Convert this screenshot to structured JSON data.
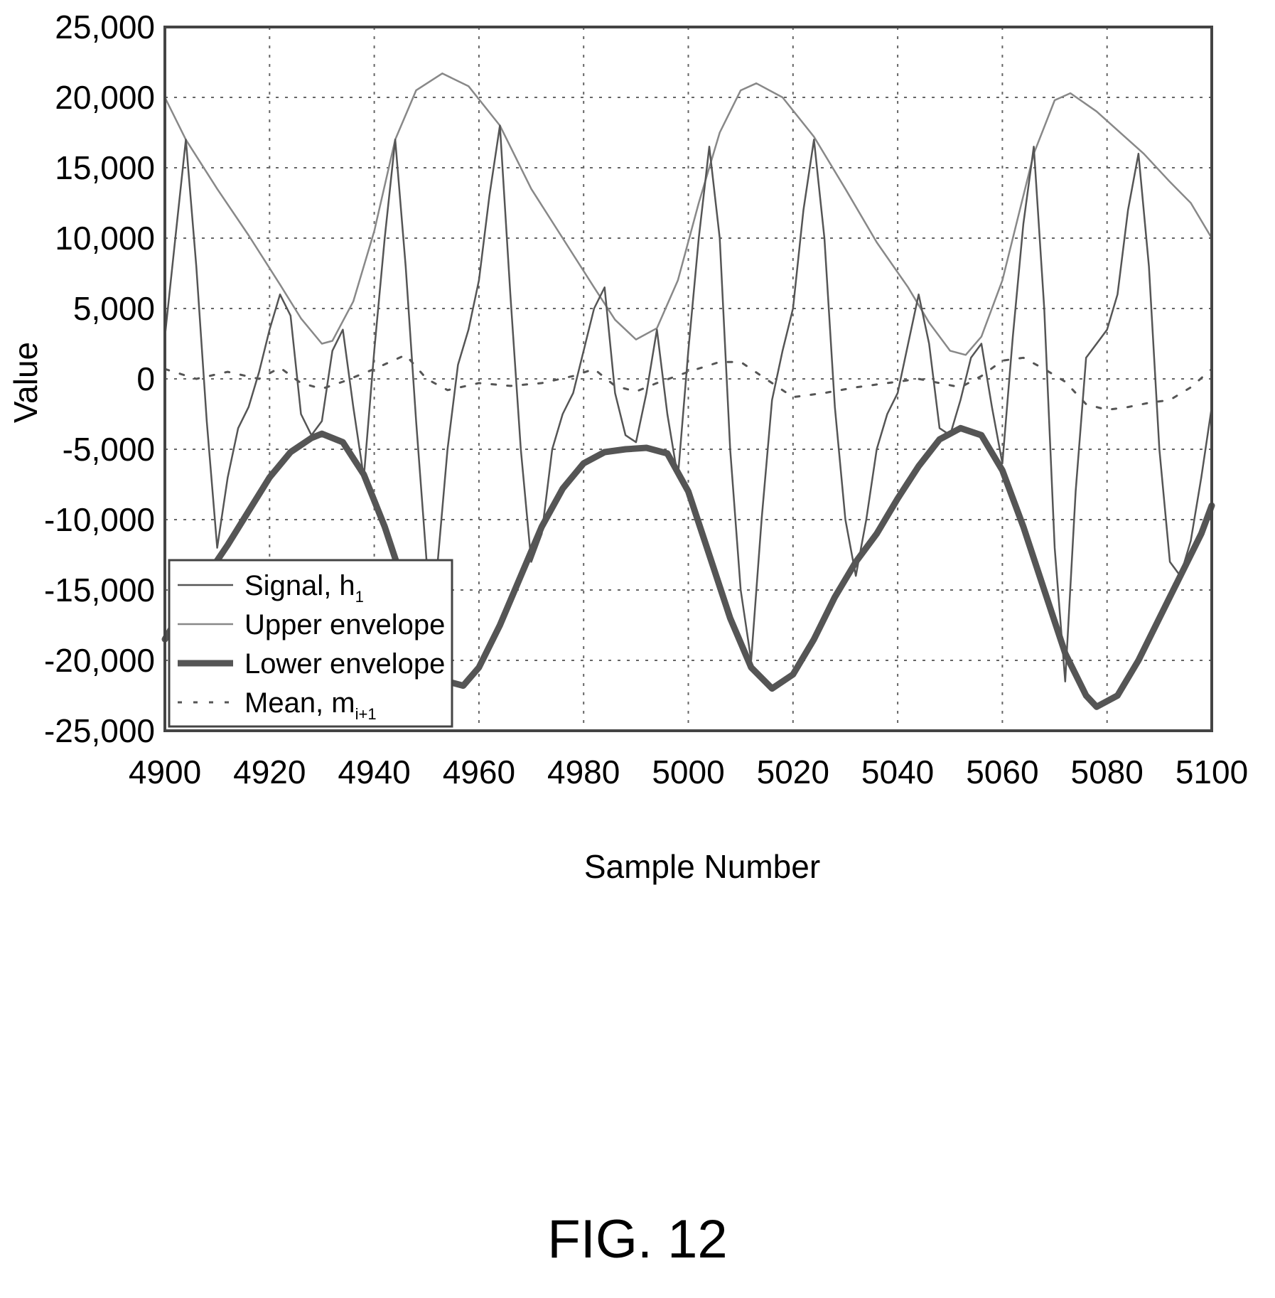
{
  "figure": {
    "caption": "FIG. 12"
  },
  "chart_data": {
    "type": "line",
    "xlabel": "Sample Number",
    "ylabel": "Value",
    "xlim": [
      4900,
      5100
    ],
    "ylim": [
      -25000,
      25000
    ],
    "x_ticks": [
      4900,
      4920,
      4940,
      4960,
      4980,
      5000,
      5020,
      5040,
      5060,
      5080,
      5100
    ],
    "x_tick_labels": [
      "4900",
      "4920",
      "4940",
      "4960",
      "4980",
      "5000",
      "5020",
      "5040",
      "5060",
      "5080",
      "5100"
    ],
    "y_ticks": [
      25000,
      20000,
      15000,
      10000,
      5000,
      0,
      -5000,
      -10000,
      -15000,
      -20000,
      -25000
    ],
    "y_tick_labels": [
      "25,000",
      "20,000",
      "15,000",
      "10,000",
      "5,000",
      "0",
      "-5,000",
      "-10,000",
      "-15,000",
      "-20,000",
      "-25,000"
    ],
    "grid": true,
    "legend_position": "bottom-left",
    "series": [
      {
        "name": "Signal, h",
        "name_subscript": "1",
        "style": "thin-solid",
        "color": "#555555",
        "points": [
          [
            4900,
            3000
          ],
          [
            4902,
            10000
          ],
          [
            4904,
            17000
          ],
          [
            4906,
            8000
          ],
          [
            4908,
            -3000
          ],
          [
            4910,
            -12000
          ],
          [
            4912,
            -7000
          ],
          [
            4914,
            -3500
          ],
          [
            4916,
            -2000
          ],
          [
            4918,
            500
          ],
          [
            4920,
            3500
          ],
          [
            4922,
            6000
          ],
          [
            4924,
            4500
          ],
          [
            4926,
            -2500
          ],
          [
            4928,
            -4000
          ],
          [
            4930,
            -3000
          ],
          [
            4932,
            2000
          ],
          [
            4934,
            3500
          ],
          [
            4936,
            -2000
          ],
          [
            4938,
            -7000
          ],
          [
            4940,
            2000
          ],
          [
            4942,
            10000
          ],
          [
            4944,
            17000
          ],
          [
            4946,
            8000
          ],
          [
            4948,
            -3000
          ],
          [
            4950,
            -13000
          ],
          [
            4952,
            -13500
          ],
          [
            4954,
            -5000
          ],
          [
            4956,
            1000
          ],
          [
            4958,
            3500
          ],
          [
            4960,
            7000
          ],
          [
            4962,
            13000
          ],
          [
            4964,
            18000
          ],
          [
            4966,
            6000
          ],
          [
            4968,
            -5000
          ],
          [
            4970,
            -13000
          ],
          [
            4972,
            -11000
          ],
          [
            4974,
            -5000
          ],
          [
            4976,
            -2500
          ],
          [
            4978,
            -1000
          ],
          [
            4980,
            2000
          ],
          [
            4982,
            5000
          ],
          [
            4984,
            6500
          ],
          [
            4986,
            -1000
          ],
          [
            4988,
            -4000
          ],
          [
            4990,
            -4500
          ],
          [
            4992,
            -1000
          ],
          [
            4994,
            3500
          ],
          [
            4996,
            -2500
          ],
          [
            4998,
            -7000
          ],
          [
            5000,
            2000
          ],
          [
            5002,
            10000
          ],
          [
            5004,
            16500
          ],
          [
            5006,
            10000
          ],
          [
            5008,
            -5000
          ],
          [
            5010,
            -15000
          ],
          [
            5012,
            -20000
          ],
          [
            5014,
            -10000
          ],
          [
            5016,
            -1500
          ],
          [
            5018,
            2000
          ],
          [
            5020,
            5000
          ],
          [
            5022,
            12000
          ],
          [
            5024,
            17000
          ],
          [
            5026,
            10000
          ],
          [
            5028,
            -2000
          ],
          [
            5030,
            -10000
          ],
          [
            5032,
            -14000
          ],
          [
            5034,
            -10000
          ],
          [
            5036,
            -5000
          ],
          [
            5038,
            -2500
          ],
          [
            5040,
            -1000
          ],
          [
            5042,
            2500
          ],
          [
            5044,
            6000
          ],
          [
            5046,
            2500
          ],
          [
            5048,
            -3500
          ],
          [
            5050,
            -4000
          ],
          [
            5052,
            -1500
          ],
          [
            5054,
            1500
          ],
          [
            5056,
            2500
          ],
          [
            5058,
            -2000
          ],
          [
            5060,
            -6000
          ],
          [
            5062,
            3000
          ],
          [
            5064,
            11000
          ],
          [
            5066,
            16500
          ],
          [
            5068,
            5000
          ],
          [
            5070,
            -12000
          ],
          [
            5072,
            -21500
          ],
          [
            5074,
            -8000
          ],
          [
            5076,
            1500
          ],
          [
            5078,
            2500
          ],
          [
            5080,
            3500
          ],
          [
            5082,
            6000
          ],
          [
            5084,
            12000
          ],
          [
            5086,
            16000
          ],
          [
            5088,
            8000
          ],
          [
            5090,
            -5000
          ],
          [
            5092,
            -13000
          ],
          [
            5094,
            -14000
          ],
          [
            5096,
            -11500
          ],
          [
            5098,
            -7000
          ],
          [
            5100,
            -2000
          ]
        ]
      },
      {
        "name": "Upper envelope",
        "style": "thin-solid",
        "color": "#888888",
        "points": [
          [
            4900,
            20000
          ],
          [
            4904,
            17000
          ],
          [
            4910,
            13500
          ],
          [
            4916,
            10200
          ],
          [
            4922,
            6700
          ],
          [
            4926,
            4300
          ],
          [
            4930,
            2500
          ],
          [
            4932,
            2700
          ],
          [
            4936,
            5500
          ],
          [
            4940,
            10500
          ],
          [
            4944,
            17000
          ],
          [
            4948,
            20500
          ],
          [
            4953,
            21700
          ],
          [
            4958,
            20800
          ],
          [
            4964,
            18000
          ],
          [
            4970,
            13500
          ],
          [
            4976,
            10000
          ],
          [
            4982,
            6500
          ],
          [
            4986,
            4200
          ],
          [
            4990,
            2800
          ],
          [
            4994,
            3600
          ],
          [
            4998,
            7000
          ],
          [
            5002,
            12500
          ],
          [
            5006,
            17500
          ],
          [
            5010,
            20500
          ],
          [
            5013,
            21000
          ],
          [
            5018,
            20000
          ],
          [
            5024,
            17200
          ],
          [
            5030,
            13500
          ],
          [
            5036,
            9700
          ],
          [
            5042,
            6500
          ],
          [
            5046,
            4000
          ],
          [
            5050,
            2000
          ],
          [
            5053,
            1700
          ],
          [
            5056,
            3000
          ],
          [
            5060,
            7000
          ],
          [
            5066,
            16000
          ],
          [
            5070,
            19800
          ],
          [
            5073,
            20300
          ],
          [
            5078,
            19000
          ],
          [
            5084,
            17000
          ],
          [
            5087,
            16000
          ],
          [
            5092,
            14000
          ],
          [
            5096,
            12500
          ],
          [
            5100,
            10000
          ]
        ]
      },
      {
        "name": "Lower envelope",
        "style": "thick-solid",
        "color": "#555555",
        "points": [
          [
            4900,
            -18500
          ],
          [
            4904,
            -16000
          ],
          [
            4908,
            -14000
          ],
          [
            4912,
            -11800
          ],
          [
            4916,
            -9400
          ],
          [
            4920,
            -7000
          ],
          [
            4924,
            -5200
          ],
          [
            4928,
            -4200
          ],
          [
            4930,
            -3900
          ],
          [
            4934,
            -4500
          ],
          [
            4938,
            -6800
          ],
          [
            4942,
            -10500
          ],
          [
            4946,
            -15000
          ],
          [
            4950,
            -19000
          ],
          [
            4954,
            -21500
          ],
          [
            4957,
            -21800
          ],
          [
            4960,
            -20500
          ],
          [
            4964,
            -17500
          ],
          [
            4968,
            -14000
          ],
          [
            4972,
            -10500
          ],
          [
            4976,
            -7800
          ],
          [
            4980,
            -6000
          ],
          [
            4984,
            -5200
          ],
          [
            4988,
            -5000
          ],
          [
            4992,
            -4900
          ],
          [
            4996,
            -5300
          ],
          [
            5000,
            -8000
          ],
          [
            5004,
            -12500
          ],
          [
            5008,
            -17000
          ],
          [
            5012,
            -20500
          ],
          [
            5016,
            -22000
          ],
          [
            5020,
            -21000
          ],
          [
            5024,
            -18500
          ],
          [
            5028,
            -15500
          ],
          [
            5032,
            -13000
          ],
          [
            5036,
            -11000
          ],
          [
            5040,
            -8500
          ],
          [
            5044,
            -6200
          ],
          [
            5048,
            -4300
          ],
          [
            5052,
            -3500
          ],
          [
            5056,
            -4000
          ],
          [
            5060,
            -6500
          ],
          [
            5064,
            -10500
          ],
          [
            5068,
            -15000
          ],
          [
            5072,
            -19500
          ],
          [
            5076,
            -22500
          ],
          [
            5078,
            -23300
          ],
          [
            5082,
            -22500
          ],
          [
            5086,
            -20000
          ],
          [
            5090,
            -17000
          ],
          [
            5094,
            -14000
          ],
          [
            5098,
            -11000
          ],
          [
            5100,
            -9000
          ]
        ]
      },
      {
        "name": "Mean, m",
        "name_subscript": "i+1",
        "style": "dashed",
        "color": "#555555",
        "points": [
          [
            4900,
            700
          ],
          [
            4906,
            0
          ],
          [
            4912,
            500
          ],
          [
            4918,
            0
          ],
          [
            4922,
            800
          ],
          [
            4926,
            -300
          ],
          [
            4930,
            -700
          ],
          [
            4934,
            -200
          ],
          [
            4940,
            700
          ],
          [
            4946,
            1700
          ],
          [
            4950,
            0
          ],
          [
            4954,
            -800
          ],
          [
            4960,
            -300
          ],
          [
            4966,
            -500
          ],
          [
            4972,
            -300
          ],
          [
            4978,
            200
          ],
          [
            4982,
            700
          ],
          [
            4986,
            -500
          ],
          [
            4990,
            -900
          ],
          [
            4994,
            -300
          ],
          [
            5000,
            500
          ],
          [
            5006,
            1200
          ],
          [
            5010,
            1200
          ],
          [
            5014,
            200
          ],
          [
            5020,
            -1300
          ],
          [
            5026,
            -1000
          ],
          [
            5032,
            -600
          ],
          [
            5038,
            -300
          ],
          [
            5044,
            0
          ],
          [
            5048,
            -300
          ],
          [
            5052,
            -600
          ],
          [
            5056,
            200
          ],
          [
            5060,
            1300
          ],
          [
            5064,
            1500
          ],
          [
            5068,
            700
          ],
          [
            5072,
            -200
          ],
          [
            5076,
            -1800
          ],
          [
            5080,
            -2200
          ],
          [
            5084,
            -2000
          ],
          [
            5088,
            -1700
          ],
          [
            5092,
            -1500
          ],
          [
            5096,
            -600
          ],
          [
            5100,
            700
          ]
        ]
      }
    ]
  }
}
